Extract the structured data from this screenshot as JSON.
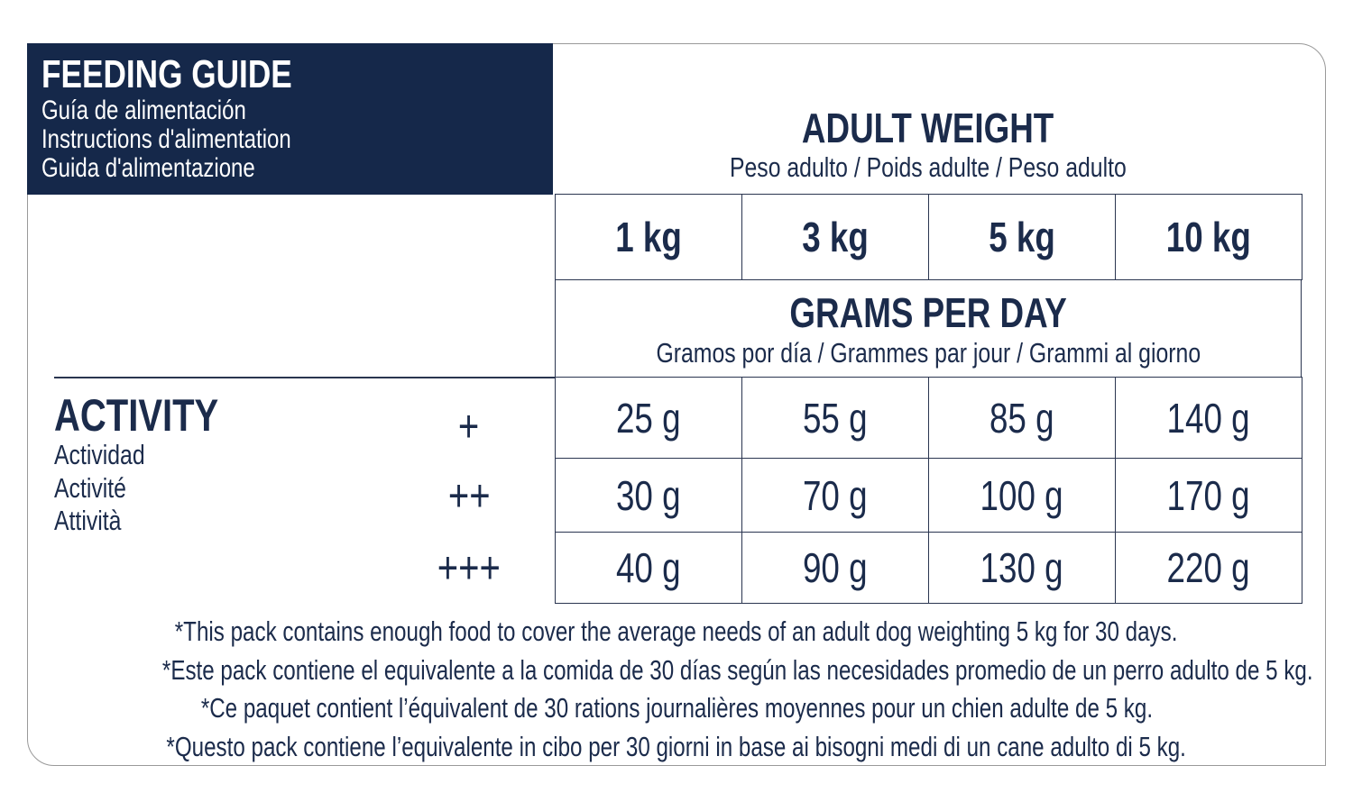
{
  "header": {
    "title": "FEEDING GUIDE",
    "subtitles": [
      "Guía de alimentación",
      "Instructions d'alimentation",
      "Guida d'alimentazione"
    ]
  },
  "weight_heading": {
    "title": "ADULT WEIGHT",
    "subtitle": "Peso adulto / Poids adulte / Peso adulto"
  },
  "weights": [
    "1 kg",
    "3 kg",
    "5 kg",
    "10 kg"
  ],
  "amount_heading": {
    "title": "GRAMS PER DAY",
    "subtitle": "Gramos por día / Grammes par jour / Grammi al giorno"
  },
  "activity": {
    "title": "ACTIVITY",
    "subtitles": [
      "Actividad",
      "Activité",
      "Attività"
    ]
  },
  "table": {
    "rows": [
      {
        "level": "+",
        "cells": [
          "25 g",
          "55 g",
          "85 g",
          "140 g"
        ]
      },
      {
        "level": "++",
        "cells": [
          "30 g",
          "70 g",
          "100 g",
          "170 g"
        ]
      },
      {
        "level": "+++",
        "cells": [
          "40 g",
          "90 g",
          "130 g",
          "220 g"
        ]
      }
    ]
  },
  "footnotes": [
    "*This pack contains enough food to cover the average needs of an adult dog weighting 5 kg for 30 days.",
    "*Este pack contiene el equivalente a la comida de 30 días según las necesidades promedio de un perro adulto de 5 kg.",
    "*Ce paquet contient l’équivalent de 30 rations journalières moyennes pour un chien adulte de 5 kg.",
    "*Questo pack contiene l’equivalente in cibo per 30 giorni in base ai bisogni medi di un cane adulto di 5 kg."
  ]
}
